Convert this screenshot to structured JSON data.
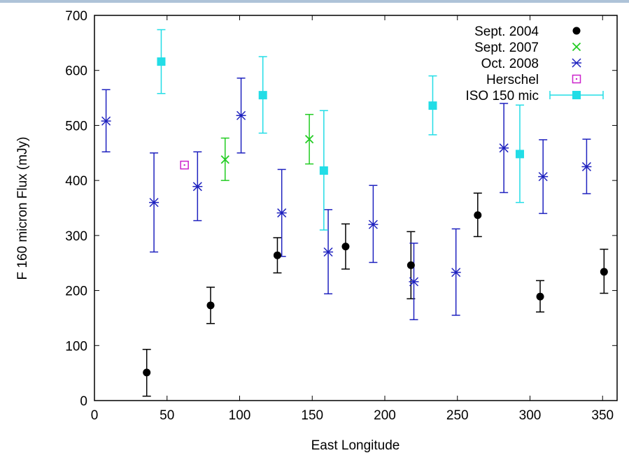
{
  "chart_data": {
    "type": "scatter",
    "xlabel": "East Longitude",
    "ylabel": "F 160 micron Flux (mJy)",
    "xlim": [
      0,
      360
    ],
    "ylim": [
      0,
      700
    ],
    "xticks": [
      0,
      50,
      100,
      150,
      200,
      250,
      300,
      350
    ],
    "yticks": [
      0,
      100,
      200,
      300,
      400,
      500,
      600,
      700
    ],
    "grid": false,
    "legend_position": "top-right",
    "series": [
      {
        "name": "Sept. 2004",
        "marker": "filled-circle",
        "color": "#000000",
        "points": [
          {
            "x": 36,
            "y": 51,
            "lo": 8,
            "hi": 93
          },
          {
            "x": 80,
            "y": 173,
            "lo": 140,
            "hi": 206
          },
          {
            "x": 126,
            "y": 264,
            "lo": 232,
            "hi": 296
          },
          {
            "x": 173,
            "y": 280,
            "lo": 239,
            "hi": 321
          },
          {
            "x": 218,
            "y": 246,
            "lo": 185,
            "hi": 307
          },
          {
            "x": 264,
            "y": 337,
            "lo": 298,
            "hi": 377
          },
          {
            "x": 307,
            "y": 189,
            "lo": 161,
            "hi": 218
          },
          {
            "x": 351,
            "y": 234,
            "lo": 195,
            "hi": 275
          }
        ]
      },
      {
        "name": "Sept. 2007",
        "marker": "x",
        "color": "#22cc22",
        "points": [
          {
            "x": 90,
            "y": 438,
            "lo": 400,
            "hi": 477
          },
          {
            "x": 148,
            "y": 475,
            "lo": 430,
            "hi": 520
          }
        ]
      },
      {
        "name": "Oct. 2008",
        "marker": "asterisk",
        "color": "#1f22bf",
        "points": [
          {
            "x": 8,
            "y": 508,
            "lo": 452,
            "hi": 565
          },
          {
            "x": 41,
            "y": 360,
            "lo": 270,
            "hi": 450
          },
          {
            "x": 71,
            "y": 389,
            "lo": 327,
            "hi": 452
          },
          {
            "x": 101,
            "y": 518,
            "lo": 450,
            "hi": 586
          },
          {
            "x": 129,
            "y": 341,
            "lo": 262,
            "hi": 420
          },
          {
            "x": 161,
            "y": 270,
            "lo": 194,
            "hi": 347
          },
          {
            "x": 192,
            "y": 320,
            "lo": 251,
            "hi": 391
          },
          {
            "x": 220,
            "y": 216,
            "lo": 147,
            "hi": 286
          },
          {
            "x": 249,
            "y": 233,
            "lo": 155,
            "hi": 312
          },
          {
            "x": 282,
            "y": 459,
            "lo": 378,
            "hi": 540
          },
          {
            "x": 309,
            "y": 407,
            "lo": 340,
            "hi": 474
          },
          {
            "x": 339,
            "y": 425,
            "lo": 376,
            "hi": 475
          }
        ]
      },
      {
        "name": "Herschel",
        "marker": "open-square-dot",
        "color": "#cc22cc",
        "points": [
          {
            "x": 62,
            "y": 428
          }
        ]
      },
      {
        "name": "ISO 150 mic",
        "marker": "filled-square",
        "color": "#22dde6",
        "points": [
          {
            "x": 46,
            "y": 616,
            "lo": 558,
            "hi": 674
          },
          {
            "x": 116,
            "y": 555,
            "lo": 486,
            "hi": 625
          },
          {
            "x": 158,
            "y": 418,
            "lo": 310,
            "hi": 527
          },
          {
            "x": 233,
            "y": 536,
            "lo": 483,
            "hi": 590
          },
          {
            "x": 293,
            "y": 448,
            "lo": 360,
            "hi": 537
          }
        ]
      }
    ]
  }
}
